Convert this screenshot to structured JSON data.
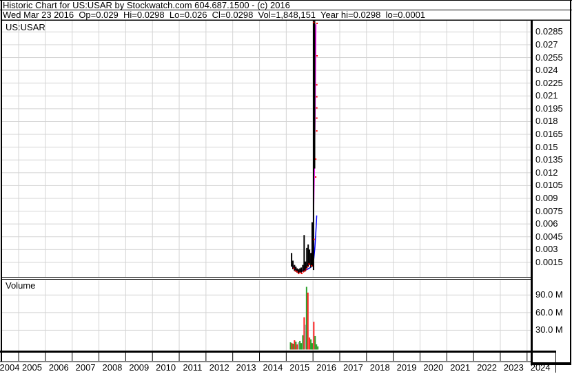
{
  "header": {
    "title": "Historic Chart for US:USAR by Stockwatch.com 604.687.1500 - (c) 2016",
    "info_line": "Wed Mar 23 2016  Op=0.029  Hi=0.0298  Lo=0.026  Cl=0.0298  Vol=1,848,151  Year hi=0.0298  lo=0.0001"
  },
  "price_pane": {
    "label": "US:USAR"
  },
  "volume_pane": {
    "label": "Volume"
  },
  "colors": {
    "background": "#ffffff",
    "grid": "#d4d4d4",
    "frame": "#000000",
    "price_bar": "#000000",
    "red_tick": "#ff0000",
    "ma_fast": "#ff00ff",
    "ma_slow": "#0000ff",
    "vol_up": "#2aa12a",
    "vol_down": "#ff2222",
    "vol_neutral": "#a8a8a8",
    "text": "#000000"
  },
  "chart_data": {
    "type": "ohlc-bars+volume",
    "symbol": "US:USAR",
    "title": "Historic Chart for US:USAR",
    "legend_position": "none",
    "grid": true,
    "x_axis": {
      "labels": [
        "2004",
        "2005",
        "2006",
        "2007",
        "2008",
        "2009",
        "2010",
        "2011",
        "2012",
        "2013",
        "2014",
        "2015",
        "2016",
        "2017",
        "2018",
        "2019",
        "2020",
        "2021",
        "2022",
        "2023",
        "2024"
      ],
      "range_years": [
        2004.38,
        2024.16
      ]
    },
    "price_axis": {
      "range": [
        -0.0002,
        0.0299
      ],
      "tick_step": 0.0015,
      "tick_values": [
        0.0285,
        0.027,
        0.0255,
        0.024,
        0.0225,
        0.021,
        0.0195,
        0.018,
        0.0165,
        0.015,
        0.0135,
        0.012,
        0.0105,
        0.009,
        0.0075,
        0.006,
        0.0045,
        0.003,
        0.0015
      ],
      "tick_labels": [
        "0.0285",
        "0.027",
        "0.0255",
        "0.024",
        "0.0225",
        "0.021",
        "0.0195",
        "0.018",
        "0.0165",
        "0.015",
        "0.0135",
        "0.012",
        "0.0105",
        "0.009",
        "0.0075",
        "0.006",
        "0.0045",
        "0.003",
        "0.0015"
      ]
    },
    "volume_axis": {
      "range_millions": [
        0,
        115
      ],
      "tick_values": [
        90,
        60,
        30
      ],
      "tick_labels": [
        "90.0 M",
        "60.0 M",
        "30.0 M"
      ]
    },
    "series": {
      "price_bars_year_high_low": [
        [
          2015.2,
          0.0026,
          0.001
        ],
        [
          2015.25,
          0.0017,
          0.0007
        ],
        [
          2015.31,
          0.0012,
          0.0005
        ],
        [
          2015.36,
          0.001,
          0.0004
        ],
        [
          2015.41,
          0.0008,
          0.0003
        ],
        [
          2015.46,
          0.0007,
          0.0002
        ],
        [
          2015.51,
          0.0008,
          0.0003
        ],
        [
          2015.56,
          0.0009,
          0.0003
        ],
        [
          2015.62,
          0.0012,
          0.0004
        ],
        [
          2015.67,
          0.0047,
          0.0004
        ],
        [
          2015.72,
          0.0016,
          0.0005
        ],
        [
          2015.77,
          0.0032,
          0.0008
        ],
        [
          2015.82,
          0.0036,
          0.001
        ],
        [
          2015.87,
          0.003,
          0.0012
        ],
        [
          2015.92,
          0.0026,
          0.0009
        ],
        [
          2015.97,
          0.0062,
          0.001
        ],
        [
          2016.02,
          0.0298,
          0.0006
        ],
        [
          2016.06,
          0.0298,
          0.0125
        ]
      ],
      "red_close_ticks_year_price": [
        [
          2015.23,
          0.0008
        ],
        [
          2015.29,
          0.0005
        ],
        [
          2015.35,
          0.0004
        ],
        [
          2015.41,
          0.0002
        ],
        [
          2015.47,
          0.0003
        ],
        [
          2015.53,
          0.0002
        ],
        [
          2015.59,
          0.0004
        ],
        [
          2015.65,
          0.0005
        ],
        [
          2015.7,
          0.0007
        ],
        [
          2015.75,
          0.001
        ],
        [
          2015.8,
          0.0013
        ],
        [
          2015.9,
          0.0011
        ],
        [
          2015.99,
          0.0042
        ],
        [
          2015.98,
          0.0296
        ],
        [
          2016.1,
          0.0295
        ],
        [
          2016.1,
          0.0257
        ],
        [
          2016.09,
          0.0223
        ],
        [
          2016.09,
          0.0209
        ],
        [
          2016.09,
          0.0196
        ],
        [
          2016.09,
          0.0184
        ],
        [
          2016.09,
          0.0169
        ],
        [
          2016.05,
          0.0136
        ],
        [
          2016.05,
          0.0115
        ]
      ],
      "ma_fast_magenta": [
        [
          2015.22,
          0.0013
        ],
        [
          2015.3,
          0.0008
        ],
        [
          2015.4,
          0.0006
        ],
        [
          2015.5,
          0.0005
        ],
        [
          2015.6,
          0.0006
        ],
        [
          2015.7,
          0.0008
        ],
        [
          2015.78,
          0.0012
        ],
        [
          2015.86,
          0.0016
        ],
        [
          2015.93,
          0.002
        ],
        [
          2015.98,
          0.0032
        ],
        [
          2016.02,
          0.0068
        ],
        [
          2016.05,
          0.012
        ],
        [
          2016.08,
          0.019
        ],
        [
          2016.1,
          0.026
        ],
        [
          2016.11,
          0.0294
        ]
      ],
      "ma_slow_blue": [
        [
          2015.35,
          0.0006
        ],
        [
          2015.5,
          0.0004
        ],
        [
          2015.65,
          0.0005
        ],
        [
          2015.8,
          0.0007
        ],
        [
          2015.9,
          0.0009
        ],
        [
          2015.98,
          0.0012
        ],
        [
          2016.03,
          0.0019
        ],
        [
          2016.07,
          0.0032
        ],
        [
          2016.11,
          0.0052
        ],
        [
          2016.14,
          0.007
        ]
      ],
      "volume_bars_year_millions_dir": [
        [
          2015.16,
          9.4,
          "up"
        ],
        [
          2015.21,
          8.0,
          "down"
        ],
        [
          2015.26,
          7.0,
          "up"
        ],
        [
          2015.31,
          12.9,
          "down"
        ],
        [
          2015.36,
          10.6,
          "up"
        ],
        [
          2015.41,
          5.9,
          "down"
        ],
        [
          2015.46,
          9.4,
          "neutral"
        ],
        [
          2015.51,
          11.8,
          "up"
        ],
        [
          2015.56,
          8.0,
          "up"
        ],
        [
          2015.62,
          21.5,
          "up"
        ],
        [
          2015.67,
          52.1,
          "down"
        ],
        [
          2015.71,
          39.2,
          "neutral"
        ],
        [
          2015.76,
          103.9,
          "up"
        ],
        [
          2015.81,
          94.1,
          "down"
        ],
        [
          2015.87,
          17.6,
          "down"
        ],
        [
          2015.92,
          14.5,
          "up"
        ],
        [
          2015.97,
          8.0,
          "up"
        ],
        [
          2016.03,
          44.4,
          "down"
        ],
        [
          2016.08,
          20.0,
          "up"
        ],
        [
          2016.13,
          6.0,
          "up"
        ],
        [
          2016.18,
          2.4,
          "up"
        ]
      ]
    }
  }
}
